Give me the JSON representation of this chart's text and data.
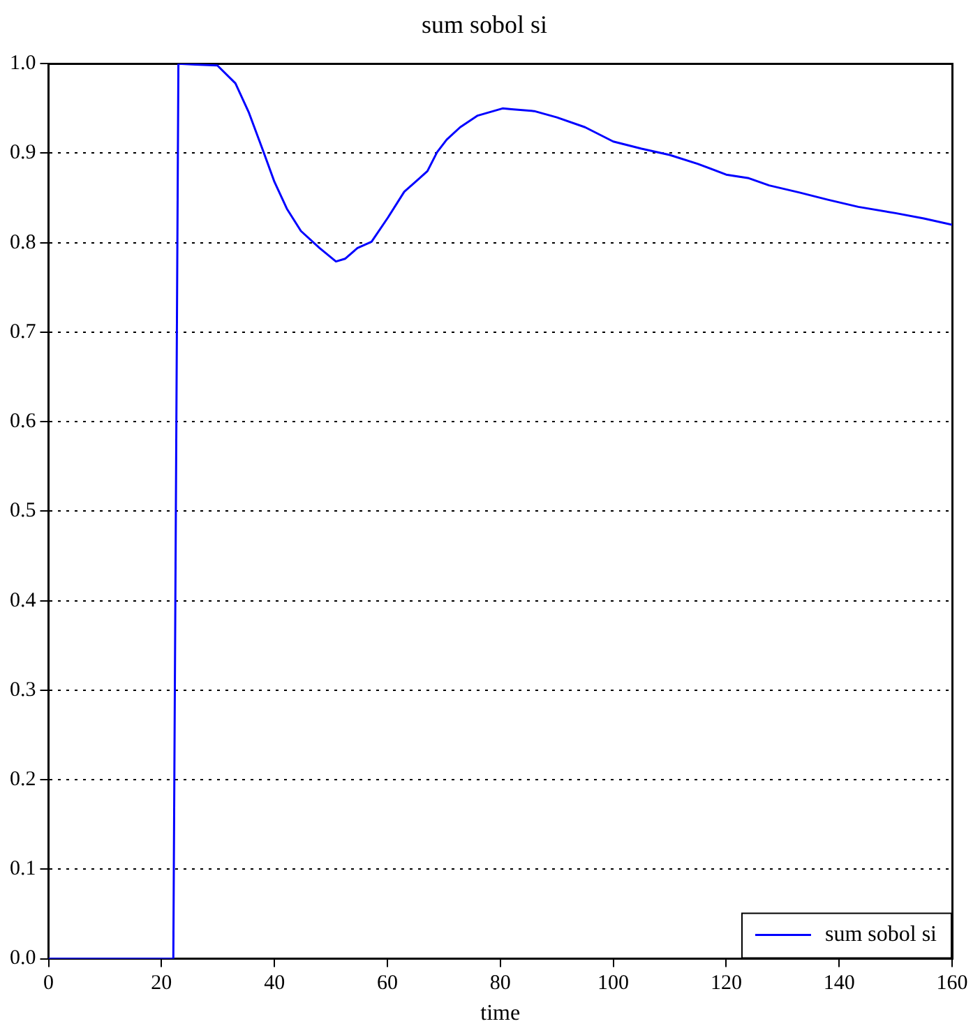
{
  "chart_data": {
    "type": "line",
    "title": "sum sobol si",
    "xlabel": "time",
    "x": [
      0,
      10,
      22.1,
      23,
      26,
      29.9,
      33.1,
      35.5,
      38.1,
      40,
      42.2,
      44.7,
      48,
      50.9,
      52.5,
      54.7,
      57.2,
      60.1,
      63,
      65,
      67.1,
      68.8,
      70.5,
      72.9,
      76,
      80.4,
      82,
      86,
      90,
      95,
      100,
      105,
      110,
      115,
      120,
      124,
      127.6,
      133,
      138,
      143.4,
      150,
      155,
      160
    ],
    "series": [
      {
        "name": "sum sobol si",
        "color": "#0000ff",
        "values": [
          0,
          0,
          0,
          1.0,
          0.999,
          0.998,
          0.978,
          0.945,
          0.901,
          0.868,
          0.838,
          0.813,
          0.794,
          0.779,
          0.782,
          0.794,
          0.801,
          0.828,
          0.857,
          0.868,
          0.88,
          0.901,
          0.915,
          0.929,
          0.942,
          0.95,
          0.949,
          0.947,
          0.94,
          0.929,
          0.913,
          0.905,
          0.898,
          0.888,
          0.876,
          0.872,
          0.864,
          0.856,
          0.848,
          0.84,
          0.833,
          0.827,
          0.82
        ]
      }
    ],
    "xlim": [
      0,
      160
    ],
    "xticks": [
      0,
      20,
      40,
      60,
      80,
      100,
      120,
      140,
      160
    ],
    "ylim": [
      0,
      1
    ],
    "yticks": [
      {
        "value": 0,
        "label": "0.0"
      },
      {
        "value": 0.1,
        "label": "0.1"
      },
      {
        "value": 0.2,
        "label": "0.2"
      },
      {
        "value": 0.3,
        "label": "0.3"
      },
      {
        "value": 0.4,
        "label": "0.4"
      },
      {
        "value": 0.5,
        "label": "0.5"
      },
      {
        "value": 0.6,
        "label": "0.6"
      },
      {
        "value": 0.7,
        "label": "0.7"
      },
      {
        "value": 0.8,
        "label": "0.8"
      },
      {
        "value": 0.9,
        "label": "0.9"
      },
      {
        "value": 1,
        "label": "1.0"
      }
    ],
    "grid": "y",
    "legend": "bottom right",
    "line_style": "solid",
    "marker": "none"
  }
}
